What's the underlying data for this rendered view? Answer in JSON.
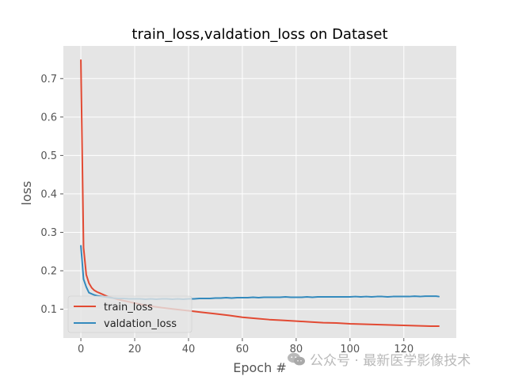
{
  "chart_data": {
    "type": "line",
    "title": "train_loss,valdation_loss on Dataset",
    "xlabel": "Epoch #",
    "ylabel": "loss",
    "xlim": [
      -6.5,
      139.5
    ],
    "ylim": [
      0.025,
      0.785
    ],
    "xticks": [
      0,
      20,
      40,
      60,
      80,
      100,
      120
    ],
    "yticks": [
      0.1,
      0.2,
      0.3,
      0.4,
      0.5,
      0.6,
      0.7
    ],
    "grid": true,
    "legend": "bottom-left",
    "colors": {
      "plot_background": "#E5E5E5",
      "grid": "#FFFFFF",
      "text": "#555555",
      "train": "#E24A33",
      "validation": "#348ABD"
    },
    "series": [
      {
        "name": "train_loss",
        "color": "#E24A33",
        "x": [
          0,
          1,
          2,
          3,
          4,
          5,
          6,
          7,
          8,
          9,
          10,
          12,
          14,
          16,
          18,
          20,
          25,
          30,
          35,
          40,
          45,
          50,
          55,
          60,
          65,
          70,
          75,
          80,
          85,
          90,
          95,
          100,
          105,
          110,
          115,
          120,
          125,
          130,
          133
        ],
        "values": [
          0.748,
          0.26,
          0.19,
          0.168,
          0.156,
          0.149,
          0.145,
          0.142,
          0.139,
          0.136,
          0.133,
          0.129,
          0.125,
          0.122,
          0.119,
          0.116,
          0.109,
          0.104,
          0.1,
          0.096,
          0.092,
          0.088,
          0.084,
          0.079,
          0.076,
          0.073,
          0.071,
          0.069,
          0.067,
          0.065,
          0.064,
          0.062,
          0.061,
          0.06,
          0.059,
          0.058,
          0.057,
          0.056,
          0.056
        ]
      },
      {
        "name": "valdation_loss",
        "color": "#348ABD",
        "x": [
          0,
          1,
          2,
          3,
          4,
          5,
          6,
          7,
          8,
          9,
          10,
          12,
          14,
          16,
          18,
          20,
          22,
          24,
          26,
          28,
          30,
          32,
          34,
          36,
          38,
          40,
          42,
          44,
          46,
          48,
          50,
          52,
          54,
          56,
          58,
          60,
          62,
          64,
          66,
          68,
          70,
          72,
          74,
          76,
          78,
          80,
          82,
          84,
          86,
          88,
          90,
          92,
          94,
          96,
          98,
          100,
          102,
          104,
          106,
          108,
          110,
          112,
          114,
          116,
          118,
          120,
          122,
          124,
          126,
          128,
          130,
          132,
          133
        ],
        "values": [
          0.265,
          0.178,
          0.158,
          0.143,
          0.14,
          0.137,
          0.135,
          0.134,
          0.133,
          0.132,
          0.131,
          0.129,
          0.128,
          0.128,
          0.127,
          0.127,
          0.127,
          0.126,
          0.127,
          0.126,
          0.127,
          0.127,
          0.126,
          0.127,
          0.126,
          0.127,
          0.127,
          0.128,
          0.128,
          0.128,
          0.129,
          0.129,
          0.13,
          0.129,
          0.13,
          0.13,
          0.13,
          0.131,
          0.13,
          0.131,
          0.131,
          0.131,
          0.131,
          0.132,
          0.131,
          0.131,
          0.131,
          0.132,
          0.131,
          0.132,
          0.132,
          0.132,
          0.132,
          0.132,
          0.132,
          0.132,
          0.133,
          0.132,
          0.133,
          0.132,
          0.133,
          0.133,
          0.132,
          0.133,
          0.133,
          0.133,
          0.133,
          0.134,
          0.133,
          0.134,
          0.134,
          0.134,
          0.133
        ]
      }
    ]
  },
  "watermark": {
    "text": "公众号 · 最新医学影像技术",
    "icon": "wechat-icon"
  }
}
